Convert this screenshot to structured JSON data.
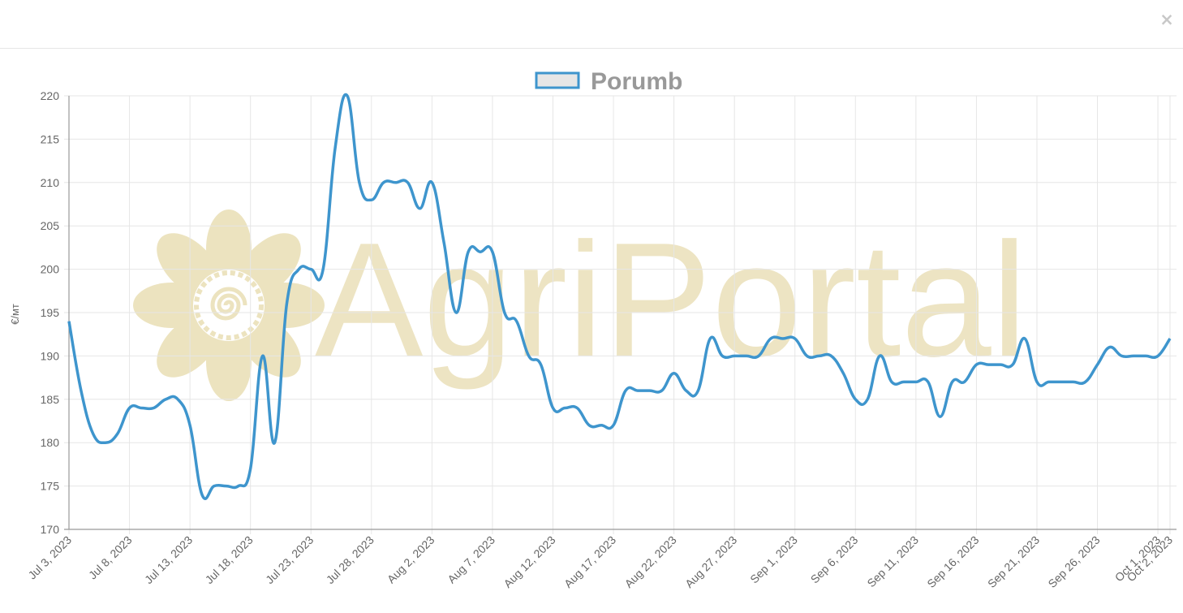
{
  "modal": {
    "close_label": "×"
  },
  "watermark": {
    "text": "AgriPortal"
  },
  "chart_data": {
    "type": "line",
    "title": "",
    "legend": {
      "position": "top",
      "entries": [
        "Porumb"
      ]
    },
    "ylabel": "€/мт",
    "xlabel": "",
    "ylim": [
      170,
      220
    ],
    "yticks": [
      170,
      175,
      180,
      185,
      190,
      195,
      200,
      205,
      210,
      215,
      220
    ],
    "xlim": [
      "2023-07-03",
      "2023-10-02"
    ],
    "xticks": [
      "Jul 3, 2023",
      "Jul 8, 2023",
      "Jul 13, 2023",
      "Jul 18, 2023",
      "Jul 23, 2023",
      "Jul 28, 2023",
      "Aug 2, 2023",
      "Aug 7, 2023",
      "Aug 12, 2023",
      "Aug 17, 2023",
      "Aug 22, 2023",
      "Aug 27, 2023",
      "Sep 1, 2023",
      "Sep 6, 2023",
      "Sep 11, 2023",
      "Sep 16, 2023",
      "Sep 21, 2023",
      "Sep 26, 2023",
      "Oct 1, 2023",
      "Oct 2, 2023"
    ],
    "grid": true,
    "colors": {
      "line": "#3e95cd",
      "legend_fill": "#e6e6e6",
      "grid": "#e6e6e6",
      "axis": "#999999"
    },
    "series": [
      {
        "name": "Porumb",
        "x": [
          "2023-07-03",
          "2023-07-04",
          "2023-07-05",
          "2023-07-06",
          "2023-07-07",
          "2023-07-08",
          "2023-07-09",
          "2023-07-10",
          "2023-07-11",
          "2023-07-12",
          "2023-07-13",
          "2023-07-14",
          "2023-07-15",
          "2023-07-16",
          "2023-07-17",
          "2023-07-18",
          "2023-07-19",
          "2023-07-20",
          "2023-07-21",
          "2023-07-22",
          "2023-07-23",
          "2023-07-24",
          "2023-07-25",
          "2023-07-26",
          "2023-07-27",
          "2023-07-28",
          "2023-07-29",
          "2023-07-30",
          "2023-07-31",
          "2023-08-01",
          "2023-08-02",
          "2023-08-03",
          "2023-08-04",
          "2023-08-05",
          "2023-08-06",
          "2023-08-07",
          "2023-08-08",
          "2023-08-09",
          "2023-08-10",
          "2023-08-11",
          "2023-08-12",
          "2023-08-13",
          "2023-08-14",
          "2023-08-15",
          "2023-08-16",
          "2023-08-17",
          "2023-08-18",
          "2023-08-19",
          "2023-08-20",
          "2023-08-21",
          "2023-08-22",
          "2023-08-23",
          "2023-08-24",
          "2023-08-25",
          "2023-08-26",
          "2023-08-27",
          "2023-08-28",
          "2023-08-29",
          "2023-08-30",
          "2023-08-31",
          "2023-09-01",
          "2023-09-02",
          "2023-09-03",
          "2023-09-04",
          "2023-09-05",
          "2023-09-06",
          "2023-09-07",
          "2023-09-08",
          "2023-09-09",
          "2023-09-10",
          "2023-09-11",
          "2023-09-12",
          "2023-09-13",
          "2023-09-14",
          "2023-09-15",
          "2023-09-16",
          "2023-09-17",
          "2023-09-18",
          "2023-09-19",
          "2023-09-20",
          "2023-09-21",
          "2023-09-22",
          "2023-09-23",
          "2023-09-24",
          "2023-09-25",
          "2023-09-26",
          "2023-09-27",
          "2023-09-28",
          "2023-09-29",
          "2023-09-30",
          "2023-10-01",
          "2023-10-02"
        ],
        "values": [
          194,
          186,
          181,
          180,
          181,
          184,
          184,
          184,
          185,
          185,
          182,
          174,
          175,
          175,
          175,
          177,
          190,
          180,
          196,
          200,
          200,
          200,
          214,
          220,
          210,
          208,
          210,
          210,
          210,
          207,
          210,
          203,
          195,
          202,
          202,
          202,
          195,
          194,
          190,
          189,
          184,
          184,
          184,
          182,
          182,
          182,
          186,
          186,
          186,
          186,
          188,
          186,
          186,
          192,
          190,
          190,
          190,
          190,
          192,
          192,
          192,
          190,
          190,
          190,
          188,
          185,
          185,
          190,
          187,
          187,
          187,
          187,
          183,
          187,
          187,
          189,
          189,
          189,
          189,
          192,
          187,
          187,
          187,
          187,
          187,
          189,
          191,
          190,
          190,
          190,
          190,
          192
        ]
      }
    ]
  }
}
